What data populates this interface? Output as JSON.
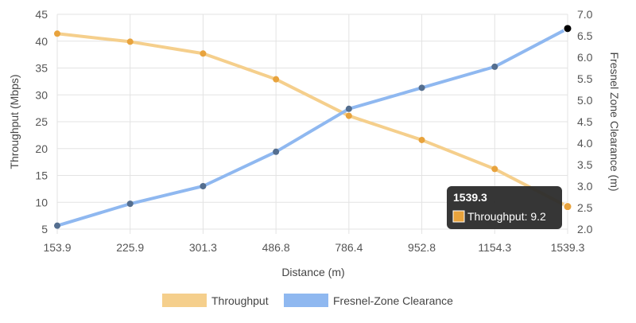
{
  "colors": {
    "throughput": "#f5cf8c",
    "throughput_point": "#e8a33d",
    "fresnel": "#8fb8f0",
    "fresnel_point": "#546e8f",
    "grid": "#e3e3e3",
    "tooltip_bg": "#2b2b2b"
  },
  "chart_data": {
    "type": "line",
    "categories": [
      "153.9",
      "225.9",
      "301.3",
      "486.8",
      "786.4",
      "952.8",
      "1154.3",
      "1539.3"
    ],
    "xlabel": "Distance (m)",
    "ylabel": "Throughput (Mbps)",
    "y2label": "Fresnel Zone Clearance (m)",
    "ylim": [
      5,
      45
    ],
    "y2lim": [
      2.0,
      7.0
    ],
    "yticks": [
      "5",
      "10",
      "15",
      "20",
      "25",
      "30",
      "35",
      "40",
      "45"
    ],
    "y2ticks": [
      "2.0",
      "2.5",
      "3.0",
      "3.5",
      "4.0",
      "4.5",
      "5.0",
      "5.5",
      "6.0",
      "6.5",
      "7.0"
    ],
    "grid": true,
    "legend_position": "bottom",
    "series": [
      {
        "name": "Throughput",
        "axis": "left",
        "values": [
          41.4,
          39.9,
          37.7,
          32.9,
          26.1,
          21.6,
          16.2,
          9.2
        ]
      },
      {
        "name": "Fresnel-Zone Clearance",
        "axis": "right",
        "values": [
          2.08,
          2.59,
          3.0,
          3.8,
          4.8,
          5.29,
          5.78,
          6.67
        ]
      }
    ],
    "tooltip": {
      "title": "1539.3",
      "label": "Throughput: 9.2"
    }
  }
}
